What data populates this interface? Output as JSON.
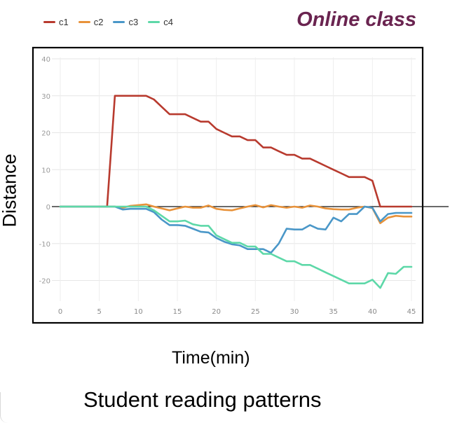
{
  "header": {
    "title": "Online class"
  },
  "legend": {
    "items": [
      {
        "label": "c1",
        "color": "#b83a2e"
      },
      {
        "label": "c2",
        "color": "#e8923a"
      },
      {
        "label": "c3",
        "color": "#4a97c8"
      },
      {
        "label": "c4",
        "color": "#5dd8a8"
      }
    ]
  },
  "axes": {
    "xlabel": "Time(min)",
    "ylabel": "Distance"
  },
  "caption": "Student reading patterns",
  "chart_data": {
    "type": "line",
    "xlabel": "Time(min)",
    "ylabel": "Distance",
    "xlim": [
      0,
      45
    ],
    "ylim": [
      -25,
      40
    ],
    "xticks": [
      0,
      5,
      10,
      15,
      20,
      25,
      30,
      35,
      40,
      45
    ],
    "yticks": [
      40,
      30,
      20,
      10,
      0,
      -10,
      -20
    ],
    "grid": true,
    "legend_position": "top-left",
    "series": [
      {
        "name": "c1",
        "color": "#b83a2e",
        "x": [
          0,
          6,
          7,
          8,
          9,
          10,
          11,
          12,
          13,
          14,
          15,
          16,
          17,
          18,
          19,
          20,
          21,
          22,
          23,
          24,
          25,
          26,
          27,
          28,
          29,
          30,
          31,
          32,
          33,
          34,
          35,
          36,
          37,
          38,
          39,
          40,
          41,
          42,
          43,
          44,
          45
        ],
        "y": [
          0,
          0,
          30,
          30,
          30,
          30,
          30,
          29,
          27,
          25,
          25,
          25,
          24,
          23,
          23,
          21,
          20,
          19,
          19,
          18,
          18,
          16,
          16,
          15,
          14,
          14,
          13,
          13,
          12,
          11,
          10,
          9,
          8,
          8,
          8,
          7,
          0,
          0,
          0,
          0,
          0
        ]
      },
      {
        "name": "c2",
        "color": "#e8923a",
        "x": [
          0,
          6,
          7,
          8,
          9,
          10,
          11,
          12,
          13,
          14,
          15,
          16,
          17,
          18,
          19,
          20,
          21,
          22,
          23,
          24,
          25,
          26,
          27,
          28,
          29,
          30,
          31,
          32,
          33,
          34,
          35,
          36,
          37,
          38,
          39,
          40,
          41,
          42,
          43,
          44,
          45
        ],
        "y": [
          0,
          0,
          0,
          -0.3,
          0.2,
          0.4,
          0.6,
          0,
          -0.5,
          -1,
          -0.5,
          0,
          -0.3,
          -0.3,
          0.3,
          -0.6,
          -0.9,
          -1,
          -0.5,
          0,
          0.4,
          -0.2,
          0.4,
          0,
          -0.3,
          0,
          -0.3,
          0.3,
          0,
          -0.5,
          -0.7,
          -0.8,
          -0.8,
          -0.3,
          0,
          -0.4,
          -4.5,
          -3,
          -2.5,
          -2.7,
          -2.7
        ]
      },
      {
        "name": "c3",
        "color": "#4a97c8",
        "x": [
          0,
          6,
          7,
          8,
          9,
          10,
          11,
          12,
          13,
          14,
          15,
          16,
          17,
          18,
          19,
          20,
          21,
          22,
          23,
          24,
          25,
          26,
          27,
          28,
          29,
          30,
          31,
          32,
          33,
          34,
          35,
          36,
          37,
          38,
          39,
          40,
          41,
          42,
          43,
          44,
          45
        ],
        "y": [
          0,
          0,
          0,
          -0.8,
          -0.6,
          -0.6,
          -0.6,
          -1.5,
          -3.5,
          -5,
          -5,
          -5.2,
          -6,
          -6.8,
          -7,
          -8.5,
          -9.5,
          -10.2,
          -10.5,
          -11.5,
          -11.5,
          -11.5,
          -12.5,
          -10,
          -6,
          -6.2,
          -6.2,
          -5,
          -6,
          -6.2,
          -3,
          -4,
          -2,
          -2,
          0,
          -0.3,
          -4,
          -2,
          -1.7,
          -1.7,
          -1.7
        ]
      },
      {
        "name": "c4",
        "color": "#5dd8a8",
        "x": [
          0,
          6,
          7,
          8,
          9,
          10,
          11,
          12,
          13,
          14,
          15,
          16,
          17,
          18,
          19,
          20,
          21,
          22,
          23,
          24,
          25,
          26,
          27,
          28,
          29,
          30,
          31,
          32,
          33,
          34,
          35,
          36,
          37,
          38,
          39,
          40,
          41,
          42,
          43,
          44,
          45
        ],
        "y": [
          0,
          0,
          0,
          0,
          0,
          0,
          0,
          -1,
          -2.5,
          -4,
          -4,
          -3.8,
          -4.8,
          -5.2,
          -5.2,
          -7.8,
          -8.8,
          -9.8,
          -9.8,
          -10.8,
          -10.8,
          -12.8,
          -12.8,
          -13.8,
          -14.8,
          -14.8,
          -15.8,
          -15.8,
          -16.8,
          -17.8,
          -18.8,
          -19.8,
          -20.8,
          -20.8,
          -20.8,
          -19.8,
          -22,
          -18,
          -18.2,
          -16.3,
          -16.3
        ]
      }
    ]
  }
}
